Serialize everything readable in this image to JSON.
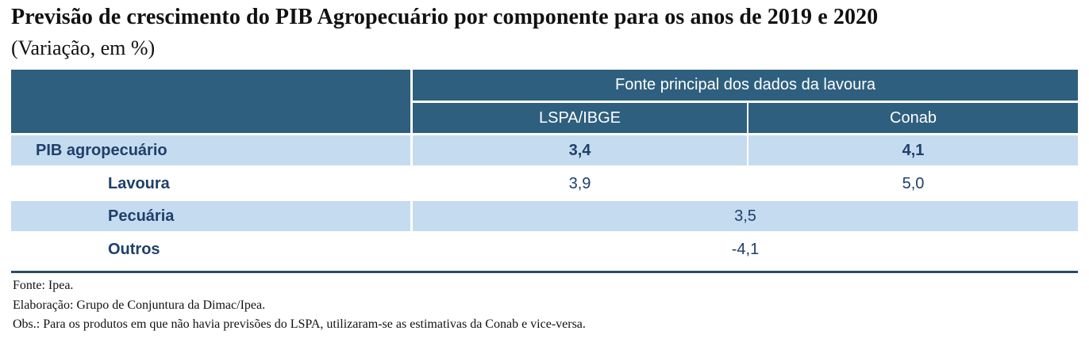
{
  "title": "Previsão de crescimento do PIB Agropecuário por componente para os anos de 2019 e 2020",
  "subtitle": "(Variação, em %)",
  "table": {
    "group_header": "Fonte principal dos dados da lavoura",
    "columns": [
      "LSPA/IBGE",
      "Conab"
    ],
    "rows": [
      {
        "label": "PIB agropecuário",
        "lspa": "3,4",
        "conab": "4,1"
      },
      {
        "label": "Lavoura",
        "lspa": "3,9",
        "conab": "5,0"
      },
      {
        "label": "Pecuária",
        "merged": "3,5"
      },
      {
        "label": "Outros",
        "merged": "-4,1"
      }
    ]
  },
  "notes": {
    "source": "Fonte: Ipea.",
    "elaboration": "Elaboração: Grupo de Conjuntura da Dimac/Ipea.",
    "obs": "Obs.: Para os produtos em que não havia previsões do LSPA, utilizaram-se as estimativas da Conab e vice-versa."
  },
  "colors": {
    "header": "#2e5f7e",
    "row_highlight": "#c5dbef",
    "text": "#1f3f6b"
  }
}
